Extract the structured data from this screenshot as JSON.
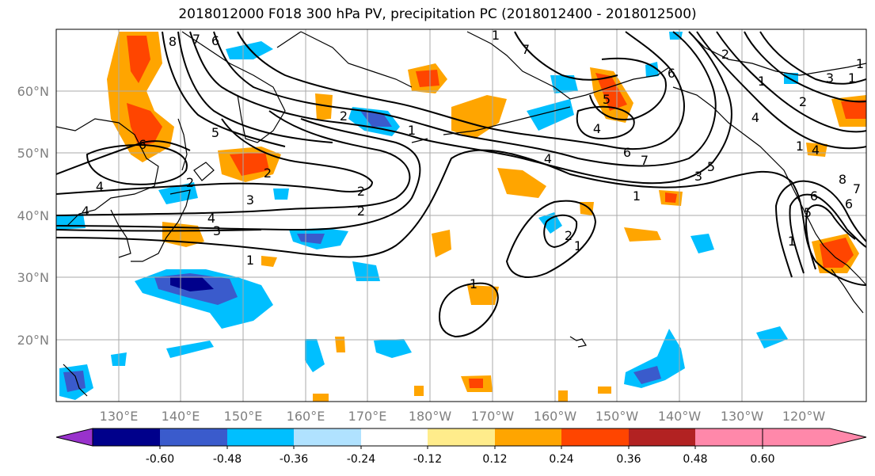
{
  "title": "2018012000 F018 300 hPa PV, precipitation PC (2018012400 - 2018012500)",
  "latitude_labels": [
    "60°N",
    "50°N",
    "40°N",
    "30°N",
    "20°N"
  ],
  "longitude_labels": [
    "130°E",
    "140°E",
    "150°E",
    "160°E",
    "170°E",
    "180°W",
    "170°W",
    "160°W",
    "150°W",
    "140°W",
    "130°W",
    "120°W"
  ],
  "colorbar": {
    "colors": [
      "#9932cc",
      "#00008b",
      "#3a5bcc",
      "#00bfff",
      "#b0e2ff",
      "#ffffff",
      "#ffec8b",
      "#ffa500",
      "#ff4500",
      "#b22222",
      "#ff88aa"
    ],
    "tick_labels": [
      "-0.60",
      "-0.48",
      "-0.36",
      "-0.24",
      "-0.12",
      "0.12",
      "0.24",
      "0.36",
      "0.48",
      "0.60"
    ]
  },
  "contour_labels": [
    "8",
    "7",
    "6",
    "5",
    "6",
    "4",
    "4",
    "4",
    "3",
    "3",
    "2",
    "2",
    "2",
    "1",
    "1",
    "2",
    "1",
    "1",
    "1",
    "2",
    "3",
    "4",
    "5",
    "6",
    "7",
    "4",
    "5",
    "6",
    "7",
    "2",
    "1",
    "6",
    "5",
    "4",
    "3",
    "2",
    "1",
    "1",
    "4",
    "1",
    "2",
    "1",
    "1",
    "6",
    "7",
    "8"
  ],
  "colors": {
    "coast": "#000000",
    "grid": "#aaaaaa",
    "pv_contour": "#000000",
    "label": "#7f7f7f"
  }
}
